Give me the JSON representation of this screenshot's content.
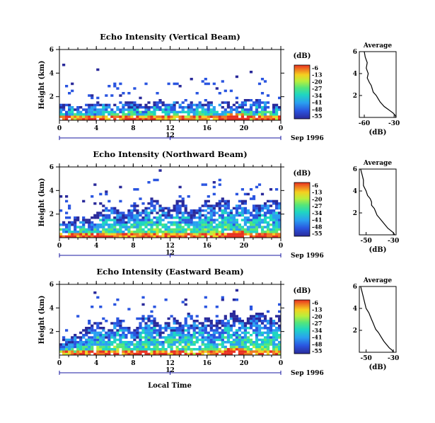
{
  "figure": {
    "x_axis_label": "Local Time",
    "date_label": "Sep 1996",
    "midday_marker": "12",
    "colorbar": {
      "unit": "(dB)",
      "ticks": [
        "-6",
        "-13",
        "-20",
        "-27",
        "-34",
        "-41",
        "-48",
        "-55"
      ],
      "colors": [
        "#e83020",
        "#f07a20",
        "#f5d020",
        "#b9ef3c",
        "#55e67a",
        "#1fd6c2",
        "#2aa0f0",
        "#2a55e0",
        "#2a2a9a"
      ]
    },
    "average_panel_title": "Average",
    "average_xlabel": "(dB)"
  },
  "chart_data": [
    {
      "type": "heatmap",
      "title": "Echo Intensity (Vertical Beam)",
      "ylabel": "Height (km)",
      "xlim": [
        0,
        24
      ],
      "ylim": [
        0,
        6
      ],
      "x_ticks": [
        "0",
        "4",
        "8",
        "12",
        "16",
        "20",
        "0"
      ],
      "y_ticks": [
        "2",
        "4",
        "6"
      ],
      "echo_top_km": [
        1.3,
        1.4,
        1.2,
        1.5,
        1.3,
        1.6,
        1.4,
        1.5,
        1.6,
        1.3,
        1.7,
        1.5,
        1.7,
        1.5,
        1.6,
        1.5,
        1.8,
        1.4,
        1.6,
        1.4,
        1.8,
        1.7,
        1.9,
        1.6,
        1.5
      ],
      "average_profile": {
        "title": "Average",
        "xlabel": "(dB)",
        "x_ticks": [
          "-60",
          "-30"
        ],
        "y_ticks": [
          "2",
          "4",
          "6"
        ],
        "x": [
          -60,
          -59,
          -57,
          -58,
          -56,
          -57,
          -55,
          -53,
          -52,
          -51,
          -48,
          -46,
          -44,
          -42,
          -40,
          -37,
          -34,
          -31,
          -29,
          -28
        ],
        "y": [
          6.0,
          5.5,
          5.0,
          4.5,
          4.0,
          3.6,
          3.2,
          2.9,
          2.6,
          2.3,
          2.0,
          1.7,
          1.4,
          1.2,
          1.0,
          0.8,
          0.6,
          0.4,
          0.2,
          0.0
        ]
      }
    },
    {
      "type": "heatmap",
      "title": "Echo Intensity (Northward Beam)",
      "ylabel": "Height (km)",
      "xlim": [
        0,
        24
      ],
      "ylim": [
        0,
        6
      ],
      "x_ticks": [
        "0",
        "4",
        "8",
        "12",
        "16",
        "20",
        "0"
      ],
      "y_ticks": [
        "2",
        "4",
        "6"
      ],
      "echo_top_km": [
        1.6,
        1.3,
        1.9,
        1.5,
        2.1,
        2.6,
        2.5,
        1.8,
        3.0,
        2.3,
        3.4,
        2.9,
        2.2,
        3.6,
        2.6,
        2.3,
        3.3,
        2.8,
        3.6,
        2.6,
        3.4,
        2.5,
        2.9,
        3.3,
        3.1
      ],
      "average_profile": {
        "title": "Average",
        "xlabel": "(dB)",
        "x_ticks": [
          "-50",
          "-30"
        ],
        "y_ticks": [
          "2",
          "4",
          "6"
        ],
        "x": [
          -54,
          -53,
          -52,
          -52,
          -50,
          -49,
          -47,
          -46,
          -46,
          -44,
          -43,
          -42,
          -40,
          -38,
          -36,
          -34,
          -32,
          -30,
          -29
        ],
        "y": [
          6.0,
          5.5,
          5.0,
          4.5,
          4.0,
          3.6,
          3.3,
          3.0,
          2.7,
          2.4,
          2.1,
          1.8,
          1.5,
          1.2,
          0.9,
          0.6,
          0.4,
          0.2,
          0.0
        ]
      }
    },
    {
      "type": "heatmap",
      "title": "Echo Intensity (Eastward Beam)",
      "ylabel": "Height (km)",
      "xlim": [
        0,
        24
      ],
      "ylim": [
        0,
        6
      ],
      "x_ticks": [
        "0",
        "4",
        "8",
        "12",
        "16",
        "20",
        "0"
      ],
      "y_ticks": [
        "2",
        "4",
        "6"
      ],
      "echo_top_km": [
        1.3,
        1.5,
        1.9,
        2.4,
        3.2,
        2.1,
        3.4,
        2.9,
        2.0,
        3.1,
        3.6,
        2.4,
        3.4,
        2.9,
        3.6,
        2.8,
        3.3,
        2.6,
        3.4,
        3.6,
        3.0,
        3.4,
        3.6,
        3.2,
        3.4
      ],
      "average_profile": {
        "title": "Average",
        "xlabel": "(dB)",
        "x_ticks": [
          "-50",
          "-30"
        ],
        "y_ticks": [
          "2",
          "4",
          "6"
        ],
        "x": [
          -54,
          -53,
          -52,
          -51,
          -50,
          -48,
          -47,
          -46,
          -45,
          -44,
          -43,
          -41,
          -39,
          -37,
          -35,
          -33,
          -31,
          -30
        ],
        "y": [
          6.0,
          5.5,
          5.0,
          4.5,
          4.0,
          3.6,
          3.3,
          3.0,
          2.7,
          2.4,
          2.1,
          1.8,
          1.4,
          1.0,
          0.7,
          0.4,
          0.2,
          0.0
        ]
      }
    }
  ]
}
